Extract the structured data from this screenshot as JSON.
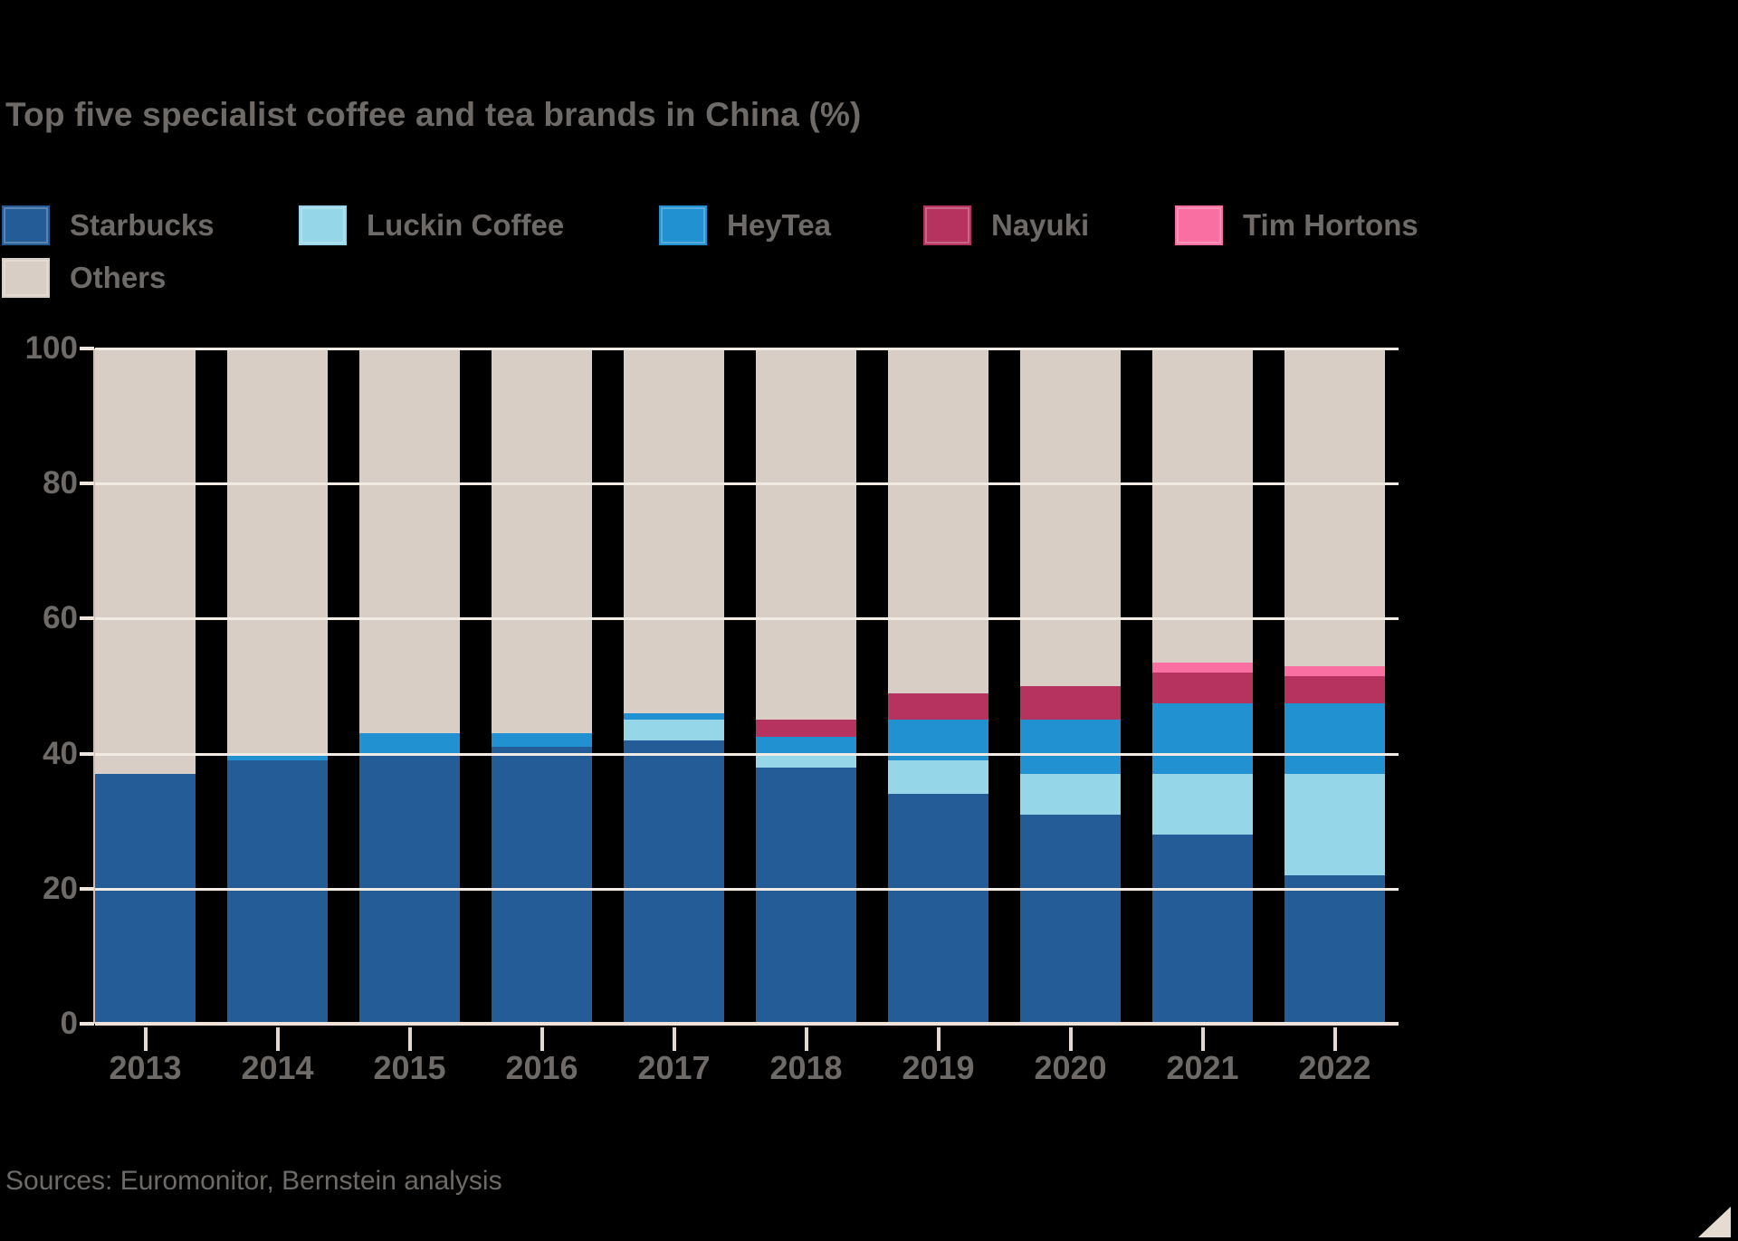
{
  "title": "Top five specialist coffee and tea brands in China (%)",
  "source": "Sources: Euromonitor, Bernstein analysis",
  "colors": {
    "background": "#000000",
    "text_gray": "#6e6a67",
    "gridline": "#f1ebe4",
    "axis": "#efe3d9",
    "starbucks": "#235c97",
    "luckin": "#96d6e9",
    "heytea": "#2191d1",
    "nayuki": "#b5335e",
    "tim_hortons": "#f96fa1",
    "others": "#d9cec5"
  },
  "legend": {
    "rows": [
      {
        "items": [
          {
            "label": "Starbucks",
            "color": "#235c97"
          },
          {
            "label": "Luckin Coffee",
            "color": "#96d6e9"
          },
          {
            "label": "HeyTea",
            "color": "#2191d1"
          },
          {
            "label": "Nayuki",
            "color": "#b5335e"
          },
          {
            "label": "Tim Hortons",
            "color": "#f96fa1"
          }
        ]
      },
      {
        "items": [
          {
            "label": "Others",
            "color": "#d9cec5"
          }
        ]
      }
    ]
  },
  "chart_data": {
    "type": "bar",
    "stacked": true,
    "title": "Top five specialist coffee and tea brands in China (%)",
    "xlabel": "",
    "ylabel": "%",
    "ylim": [
      0,
      100
    ],
    "yticks": [
      0,
      20,
      40,
      60,
      80,
      100
    ],
    "grid": true,
    "legend_position": "top",
    "categories": [
      "2013",
      "2014",
      "2015",
      "2016",
      "2017",
      "2018",
      "2019",
      "2020",
      "2021",
      "2022"
    ],
    "series": [
      {
        "name": "Starbucks",
        "color": "#235c97",
        "values": [
          37,
          39,
          40,
          41,
          42,
          38,
          34,
          31,
          28,
          22
        ]
      },
      {
        "name": "Luckin Coffee",
        "color": "#96d6e9",
        "values": [
          0,
          0,
          0,
          0,
          3,
          2,
          5,
          6,
          9,
          15
        ]
      },
      {
        "name": "HeyTea",
        "color": "#2191d1",
        "values": [
          0,
          1,
          3,
          2,
          1,
          2.5,
          6,
          8,
          10.5,
          10.5
        ]
      },
      {
        "name": "Nayuki",
        "color": "#b5335e",
        "values": [
          0,
          0,
          0,
          0,
          0,
          2.5,
          4,
          5,
          4.5,
          4
        ]
      },
      {
        "name": "Tim Hortons",
        "color": "#f96fa1",
        "values": [
          0,
          0,
          0,
          0,
          0,
          0,
          0,
          0,
          1.5,
          1.5
        ]
      },
      {
        "name": "Others",
        "color": "#d9cec5",
        "values": [
          63,
          60,
          57,
          57,
          54,
          55,
          51,
          50,
          46.5,
          47
        ]
      }
    ]
  }
}
